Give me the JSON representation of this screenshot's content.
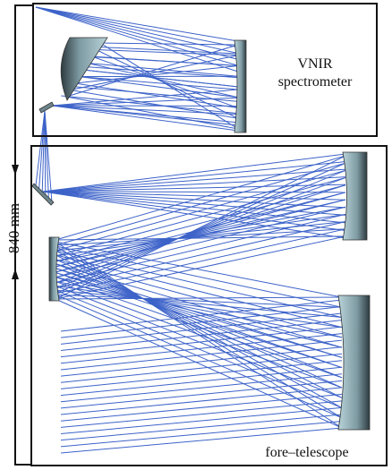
{
  "labels": {
    "spectrometer": [
      "VNIR",
      "spectrometer"
    ],
    "dimension": "840 mm",
    "telescope": "fore–telescope"
  }
}
